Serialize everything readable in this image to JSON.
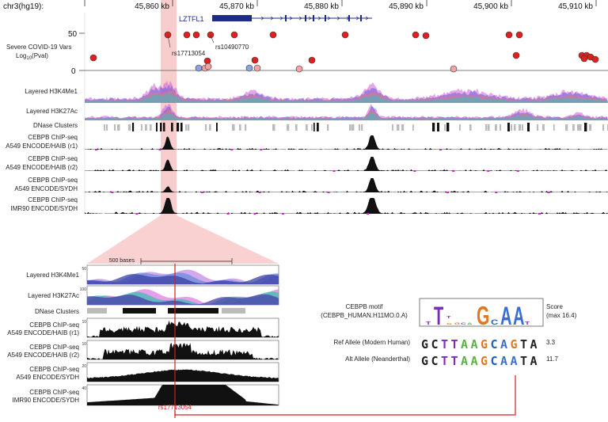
{
  "genome": {
    "assembly": "chr3(hg19):"
  },
  "coord_ticks": [
    "45,860 kb",
    "45,870 kb",
    "45,880 kb",
    "45,890 kb",
    "45,900 kb",
    "45,910 kb"
  ],
  "gene": {
    "name": "LZTFL1"
  },
  "covid_track": {
    "label_line1": "Severe COVID-19 Vars",
    "label_line2": "Log",
    "label_sub": "10",
    "label_suffix": "(Pval)",
    "y_top": "50",
    "y_zero": "0",
    "snp1": "rs17713054",
    "snp2": "rs10490770"
  },
  "tracks_top": [
    {
      "l1": "Layered H3K4Me1",
      "l2": ""
    },
    {
      "l1": "Layered H3K27Ac",
      "l2": ""
    },
    {
      "l1": "DNase Clusters",
      "l2": ""
    },
    {
      "l1": "CEBPB ChIP-seq",
      "l2": "A549 ENCODE/HAIB (r1)"
    },
    {
      "l1": "CEBPB ChIP-seq",
      "l2": "A549 ENCODE/HAIB (r2)"
    },
    {
      "l1": "CEBPB ChIP-seq",
      "l2": "A549 ENCODE/SYDH"
    },
    {
      "l1": "CEBPB ChIP-seq",
      "l2": "IMR90 ENCODE/SYDH"
    }
  ],
  "zoom": {
    "scale_label": "500 bases",
    "tracks": [
      {
        "l1": "Layered H3K4Me1",
        "l2": "",
        "ymax": "50"
      },
      {
        "l1": "Layered H3K27Ac",
        "l2": "",
        "ymax": "100"
      },
      {
        "l1": "DNase Clusters",
        "l2": "",
        "ymax": ""
      },
      {
        "l1": "CEBPB ChIP-seq",
        "l2": "A549 ENCODE/HAIB (r1)",
        "ymax": "10"
      },
      {
        "l1": "CEBPB ChIP-seq",
        "l2": "A549 ENCODE/HAIB (r2)",
        "ymax": "10"
      },
      {
        "l1": "CEBPB ChIP-seq",
        "l2": "A549 ENCODE/SYDH",
        "ymax": "20"
      },
      {
        "l1": "CEBPB ChIP-seq",
        "l2": "IMR90 ENCODE/SYDH",
        "ymax": "40"
      }
    ],
    "snp_label": "rs17713054"
  },
  "motif": {
    "label_line1": "CEBPB motif",
    "label_line2": "(CEBPB_HUMAN.H11MO.0.A)",
    "score_line1": "Score",
    "score_line2": "(max 16.4)",
    "ref_label": "Ref Allele (Modern Human)",
    "ref_seq": [
      "G",
      "C",
      "T",
      "T",
      "A",
      "A",
      "G",
      "C",
      "A",
      "G",
      "T",
      "A"
    ],
    "ref_score": "3.3",
    "alt_label": "Alt Allele (Neanderthal)",
    "alt_seq": [
      "G",
      "C",
      "T",
      "T",
      "A",
      "A",
      "G",
      "C",
      "A",
      "A",
      "T",
      "A"
    ],
    "alt_score": "11.7"
  }
}
